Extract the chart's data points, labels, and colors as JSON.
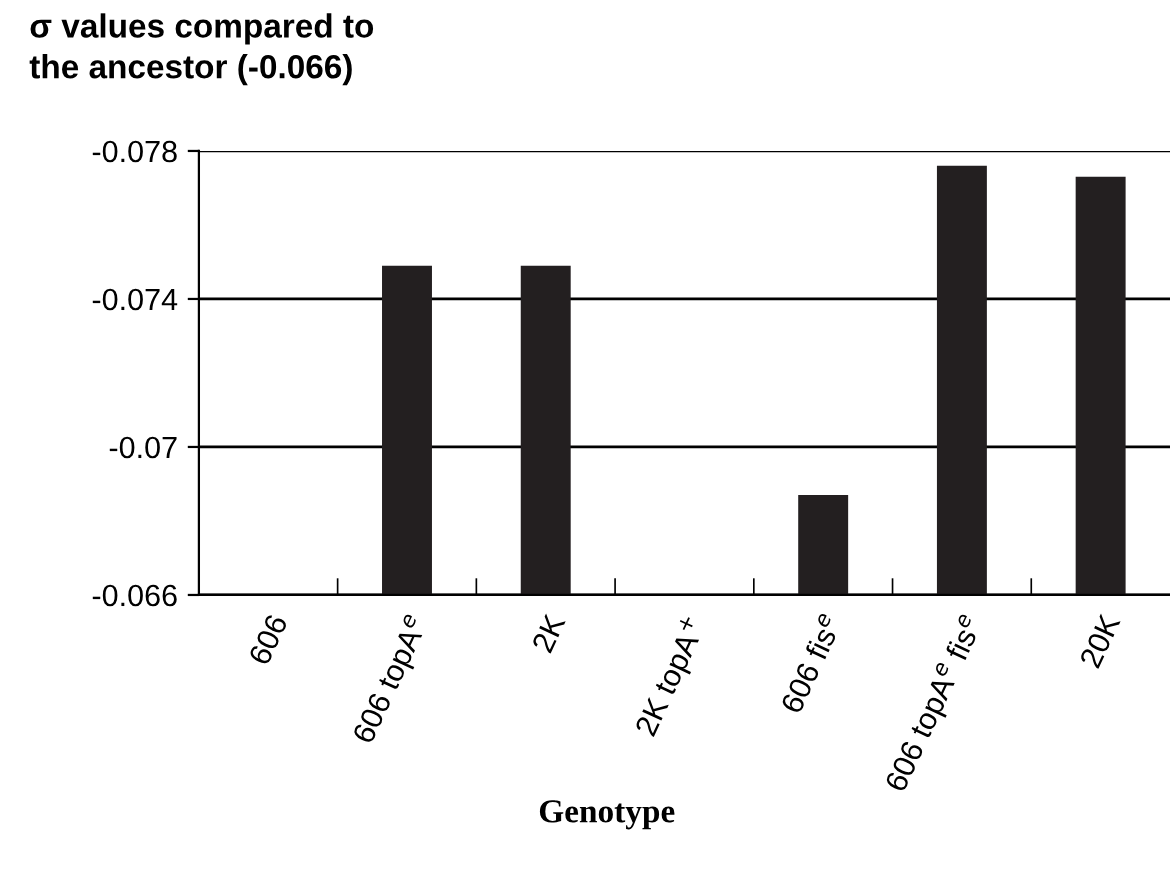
{
  "chart_data": {
    "type": "bar",
    "title": "σ values compared to\nthe ancestor (-0.066)",
    "xlabel": "Genotype",
    "categories": [
      "606",
      "606 topA$^{e}$",
      "2K",
      "2K topA$^{+}$",
      "606 fis$^{e}$",
      "606 topA$^{e}$ fis$^{e}$",
      "20K"
    ],
    "values": [
      -0.066,
      -0.0749,
      -0.0749,
      -0.066,
      -0.0687,
      -0.0776,
      -0.0773
    ],
    "color": "#231f20",
    "ylim": [
      -0.066,
      -0.078
    ],
    "yticks": [
      -0.066,
      -0.07,
      -0.074,
      -0.078
    ],
    "grid": "y"
  }
}
